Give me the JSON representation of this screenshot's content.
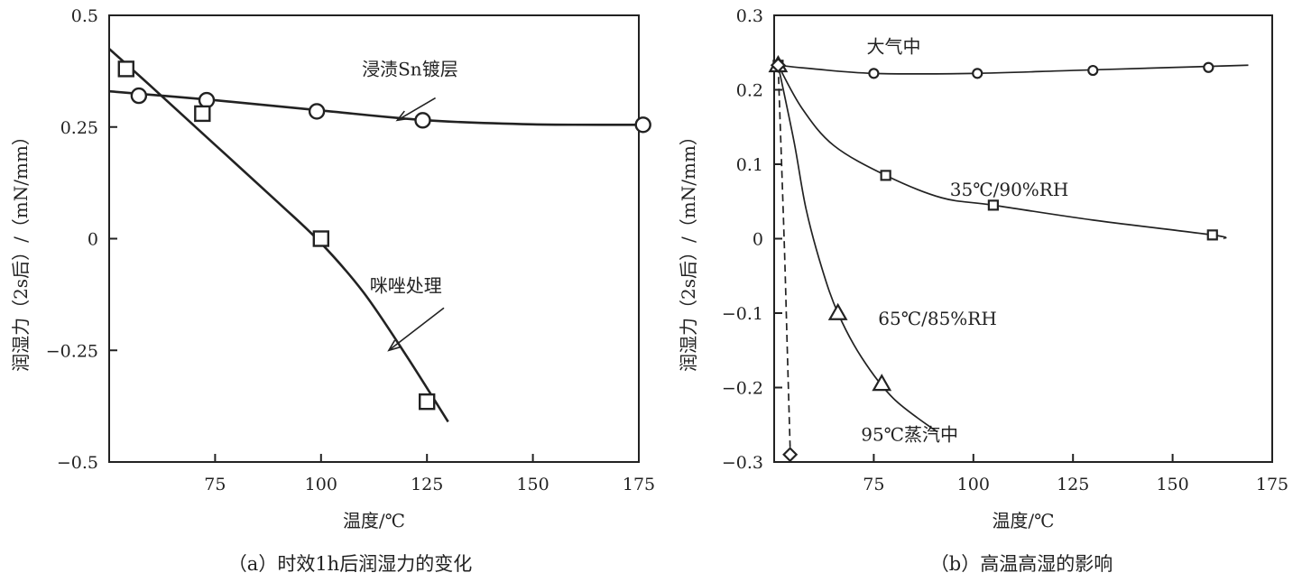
{
  "chart_data": [
    {
      "type": "line",
      "caption": "（a）时效1h后润湿力的变化",
      "xlabel": "温度/℃",
      "ylabel": "润湿力（2s后）/（mN/mm）",
      "xlim": [
        50,
        175
      ],
      "ylim": [
        -0.5,
        0.5
      ],
      "xticks": [
        75,
        100,
        125,
        150,
        175
      ],
      "yticks": [
        -0.5,
        -0.25,
        0,
        0.25,
        0.5
      ],
      "ytick_labels": [
        "−0.5",
        "−0.25",
        "0",
        "0.25",
        "0.5"
      ],
      "grid": false,
      "series": [
        {
          "name": "浸渍Sn镀层",
          "marker": "circle",
          "points": [
            [
              57,
              0.32
            ],
            [
              73,
              0.31
            ],
            [
              99,
              0.285
            ],
            [
              124,
              0.265
            ],
            [
              176,
              0.255
            ]
          ],
          "curve": [
            [
              50,
              0.33
            ],
            [
              75,
              0.31
            ],
            [
              100,
              0.287
            ],
            [
              125,
              0.265
            ],
            [
              150,
              0.256
            ],
            [
              175,
              0.255
            ]
          ]
        },
        {
          "name": "咪唑处理",
          "marker": "square",
          "points": [
            [
              54,
              0.38
            ],
            [
              72,
              0.28
            ],
            [
              100,
              0.0
            ],
            [
              125,
              -0.365
            ]
          ],
          "curve": [
            [
              50,
              0.425
            ],
            [
              60,
              0.34
            ],
            [
              75,
              0.21
            ],
            [
              90,
              0.08
            ],
            [
              100,
              -0.01
            ],
            [
              110,
              -0.12
            ],
            [
              120,
              -0.26
            ],
            [
              130,
              -0.41
            ]
          ]
        }
      ],
      "annotations": [
        {
          "text": "浸渍Sn镀层",
          "x": 121,
          "y": 0.38,
          "arrow_to": [
            118,
            0.265
          ],
          "arrow_from": [
            127,
            0.315
          ]
        },
        {
          "text": "咪唑处理",
          "x": 120,
          "y": -0.105,
          "arrow_to": [
            116,
            -0.25
          ],
          "arrow_from": [
            129,
            -0.155
          ]
        }
      ]
    },
    {
      "type": "line",
      "caption": "（b）高温高湿的影响",
      "xlabel": "温度/℃",
      "ylabel": "润湿力（2s后）/（mN/mm）",
      "xlim": [
        50,
        175
      ],
      "ylim": [
        -0.3,
        0.3
      ],
      "xticks": [
        75,
        100,
        125,
        150,
        175
      ],
      "yticks": [
        -0.3,
        -0.2,
        -0.1,
        0,
        0.1,
        0.2,
        0.3
      ],
      "ytick_labels": [
        "−0.3",
        "−0.2",
        "−0.1",
        "0",
        "0.1",
        "0.2",
        "0.3"
      ],
      "grid": false,
      "series": [
        {
          "name": "大气中",
          "marker": "circle",
          "points": [
            [
              51,
              0.233
            ],
            [
              75,
              0.222
            ],
            [
              101,
              0.222
            ],
            [
              130,
              0.226
            ],
            [
              159,
              0.23
            ]
          ],
          "curve": [
            [
              51,
              0.233
            ],
            [
              60,
              0.228
            ],
            [
              75,
              0.222
            ],
            [
              100,
              0.222
            ],
            [
              125,
              0.226
            ],
            [
              150,
              0.23
            ],
            [
              169,
              0.233
            ]
          ]
        },
        {
          "name": "35℃/90%RH",
          "marker": "square",
          "points": [
            [
              51,
              0.233
            ],
            [
              78,
              0.085
            ],
            [
              105,
              0.045
            ],
            [
              160,
              0.005
            ]
          ],
          "curve": [
            [
              51,
              0.233
            ],
            [
              57,
              0.175
            ],
            [
              65,
              0.125
            ],
            [
              78,
              0.085
            ],
            [
              92,
              0.055
            ],
            [
              105,
              0.045
            ],
            [
              130,
              0.025
            ],
            [
              160,
              0.005
            ],
            [
              163,
              0.0
            ]
          ]
        },
        {
          "name": "65℃/85%RH",
          "marker": "triangle",
          "points": [
            [
              51,
              0.233
            ],
            [
              66,
              -0.1
            ],
            [
              77,
              -0.195
            ]
          ],
          "curve": [
            [
              51,
              0.233
            ],
            [
              55,
              0.13
            ],
            [
              58,
              0.04
            ],
            [
              62,
              -0.04
            ],
            [
              66,
              -0.1
            ],
            [
              72,
              -0.16
            ],
            [
              80,
              -0.215
            ],
            [
              91,
              -0.26
            ]
          ]
        },
        {
          "name": "95℃蒸汽中",
          "marker": "diamond",
          "dashed": true,
          "points": [
            [
              51,
              0.233
            ],
            [
              54,
              -0.29
            ]
          ],
          "curve": [
            [
              51,
              0.233
            ],
            [
              52.5,
              0.0
            ],
            [
              53.3,
              -0.15
            ],
            [
              54,
              -0.28
            ]
          ]
        }
      ],
      "annotations": [
        {
          "text": "大气中",
          "x": 80,
          "y": 0.258
        },
        {
          "text": "35℃/90%RH",
          "x": 109,
          "y": 0.066
        },
        {
          "text": "65℃/85%RH",
          "x": 91,
          "y": -0.107
        },
        {
          "text": "95℃蒸汽中",
          "x": 84,
          "y": -0.263
        }
      ]
    }
  ]
}
